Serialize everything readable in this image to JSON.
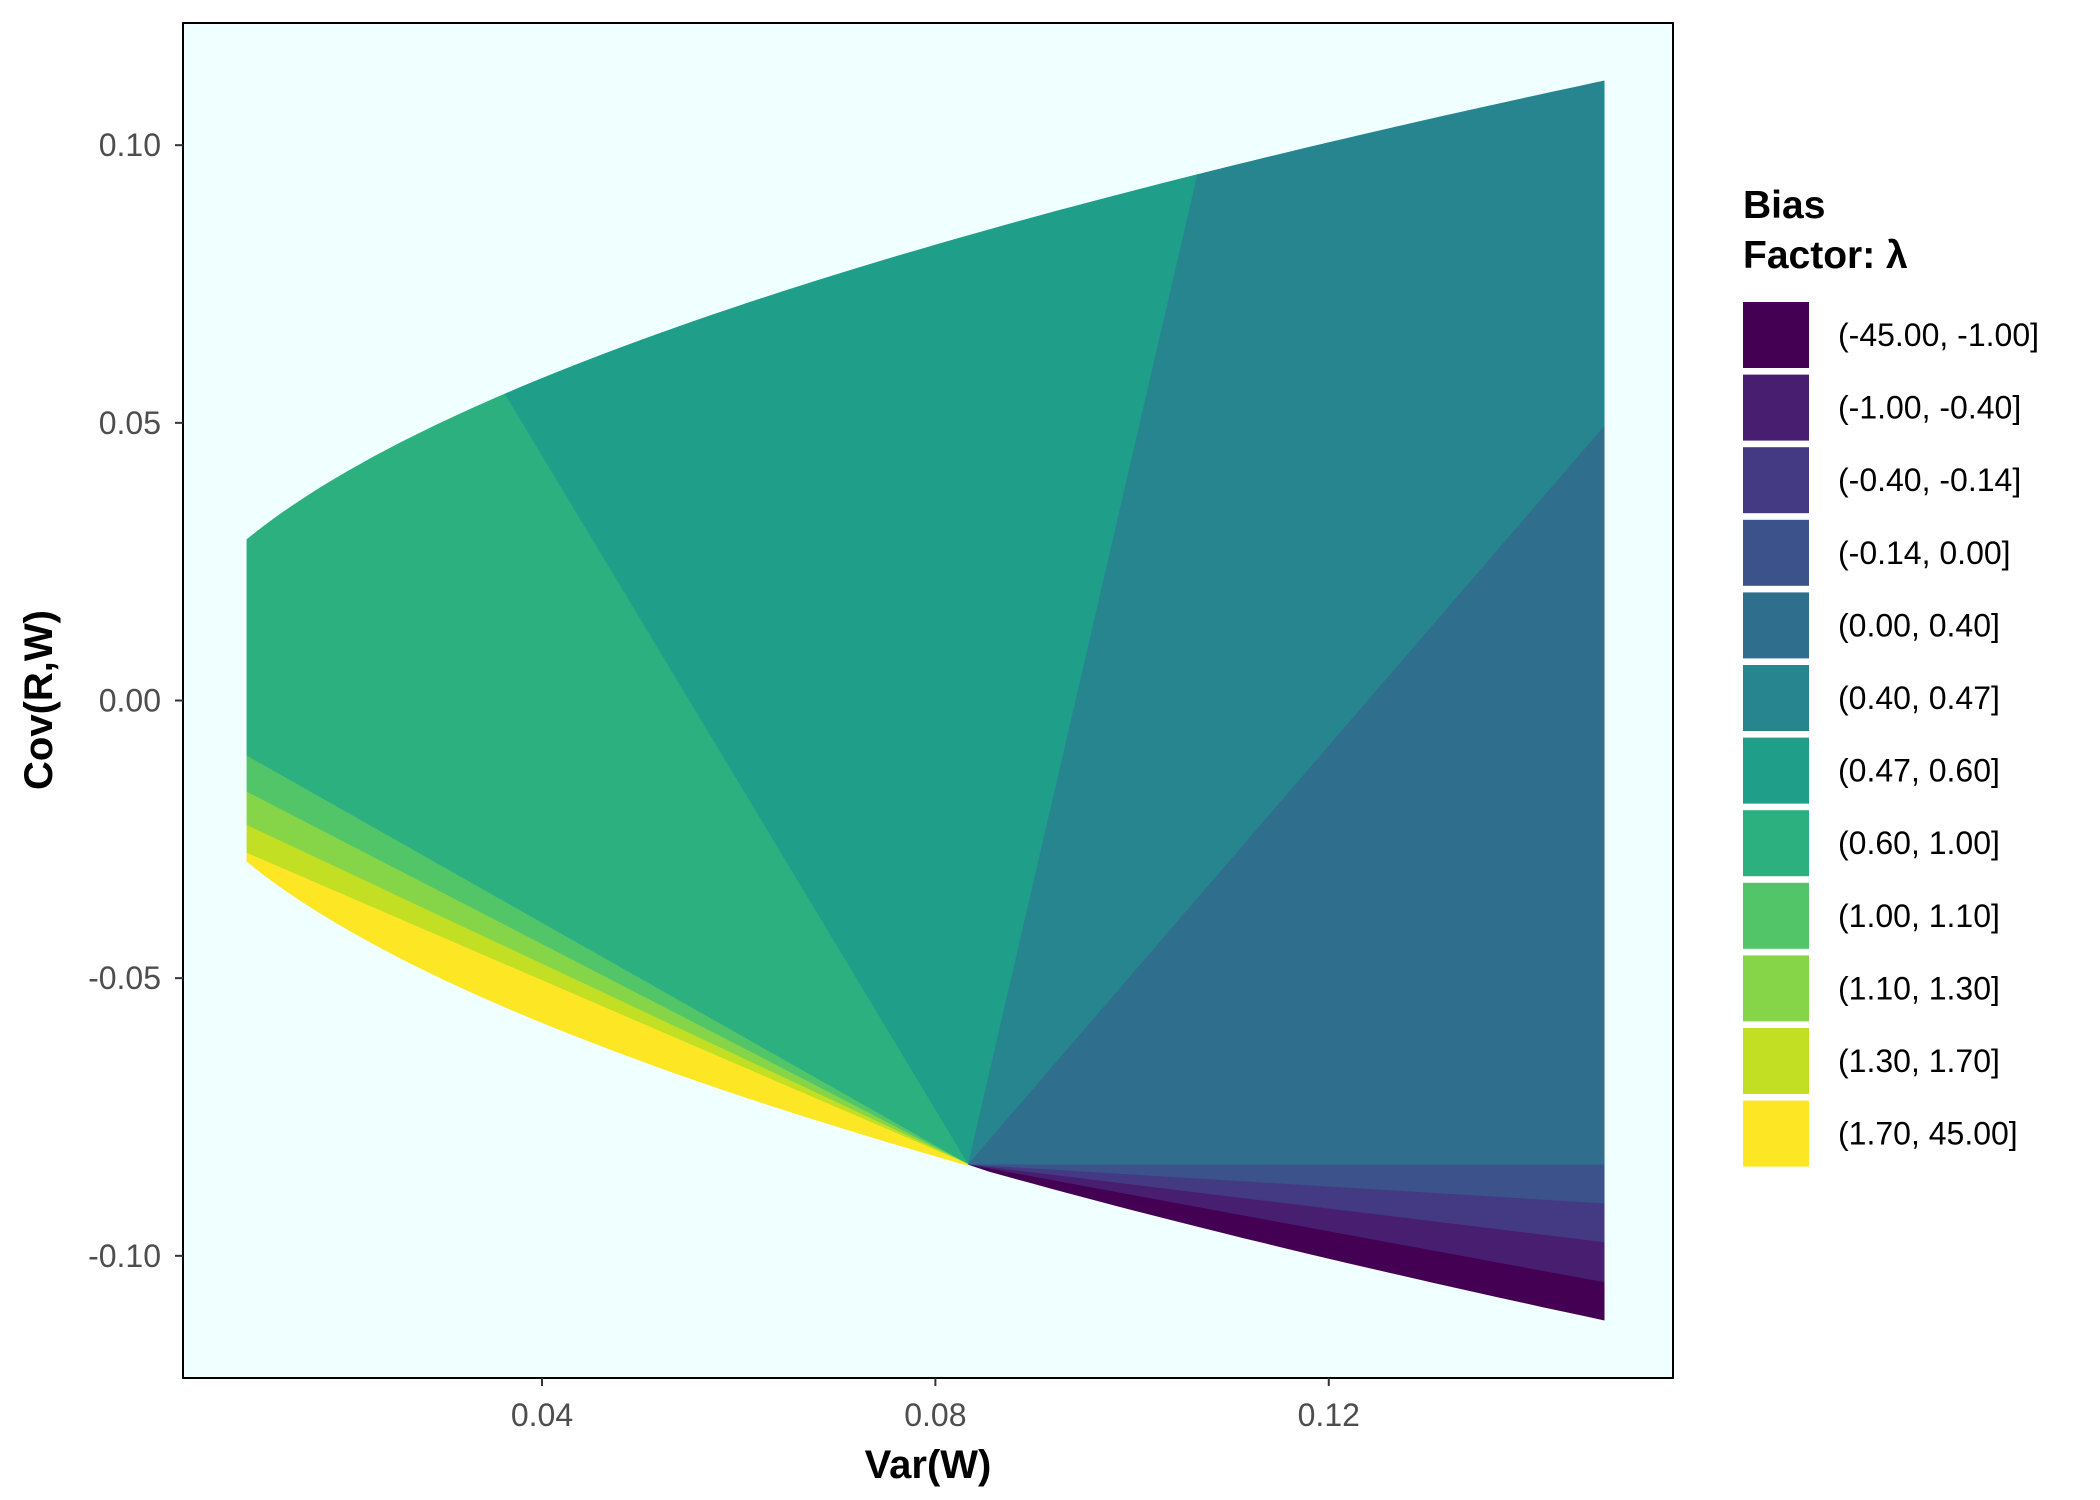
{
  "chart_data": {
    "type": "area",
    "xlabel": "Var(W)",
    "ylabel": "Cov(R,W)",
    "xlim": [
      0.0035,
      0.155
    ],
    "ylim": [
      -0.122,
      0.122
    ],
    "x_ticks": [
      {
        "value": 0.04,
        "label": "0.04"
      },
      {
        "value": 0.08,
        "label": "0.08"
      },
      {
        "value": 0.12,
        "label": "0.12"
      }
    ],
    "y_ticks": [
      {
        "value": 0.1,
        "label": "0.10"
      },
      {
        "value": 0.05,
        "label": "0.05"
      },
      {
        "value": 0.0,
        "label": "0.00"
      },
      {
        "value": -0.05,
        "label": "-0.05"
      },
      {
        "value": -0.1,
        "label": "-0.10"
      }
    ],
    "panel_background": "#F0FFFF",
    "grid": false,
    "legend": {
      "position": "right",
      "title_line1": "Bias",
      "title_line2": "Factor: λ"
    },
    "boundary": {
      "formula": "cov = ±0.29 * sqrt(var_w)",
      "x_start": 0.01,
      "x_end": 0.148
    },
    "apex": {
      "x": 0.0833,
      "y": -0.0835
    },
    "series": [
      {
        "name": "(-45.00, -1.00]",
        "color": "#440154",
        "right_edge": [
          -0.1116,
          -0.1047
        ]
      },
      {
        "name": "(-1.00, -0.40]",
        "color": "#481F70",
        "right_edge": [
          -0.1047,
          -0.0975
        ]
      },
      {
        "name": "(-0.40, -0.14]",
        "color": "#443983",
        "right_edge": [
          -0.0975,
          -0.0905
        ]
      },
      {
        "name": "(-0.14, 0.00]",
        "color": "#3B528B",
        "right_edge": [
          -0.0905,
          -0.0835
        ]
      },
      {
        "name": "(0.00, 0.40]",
        "color": "#2F6E8D",
        "right_edge": [
          -0.0835,
          0.0495
        ]
      },
      {
        "name": "(0.40, 0.47]",
        "color": "#26858E",
        "boundary_x": [
          0.1066,
          0.148
        ],
        "closing_point": [
          0.148,
          0.0495
        ]
      },
      {
        "name": "(0.47, 0.60]",
        "color": "#1F9E89",
        "boundary_x": [
          0.0362,
          0.1066
        ]
      },
      {
        "name": "(0.60, 1.00]",
        "color": "#2CB07F",
        "boundary_x": [
          0.01,
          0.0362
        ],
        "closing_point": [
          0.01,
          -0.01
        ]
      },
      {
        "name": "(1.00, 1.10]",
        "color": "#52C569",
        "left_edge": [
          -0.01,
          -0.0165
        ]
      },
      {
        "name": "(1.10, 1.30]",
        "color": "#86D549",
        "left_edge": [
          -0.0165,
          -0.0225
        ]
      },
      {
        "name": "(1.30, 1.70]",
        "color": "#C2DF23",
        "left_edge": [
          -0.0225,
          -0.0275
        ]
      },
      {
        "name": "(1.70, 45.00]",
        "color": "#FDE725",
        "left_edge": [
          -0.0275,
          -0.029
        ],
        "follows_lower_boundary": true
      }
    ]
  }
}
